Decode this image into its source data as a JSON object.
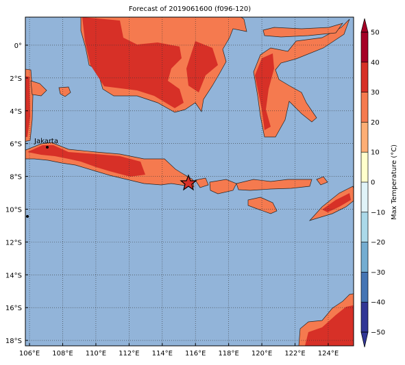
{
  "map": {
    "title": "Forecast of 2019061600 (f096-120)",
    "xlim": [
      105.75,
      125.53
    ],
    "ylim": [
      -18.33,
      1.71
    ],
    "xticks": [
      {
        "value": 106,
        "label": "106°E"
      },
      {
        "value": 108,
        "label": "108°E"
      },
      {
        "value": 110,
        "label": "110°E"
      },
      {
        "value": 112,
        "label": "112°E"
      },
      {
        "value": 114,
        "label": "114°E"
      },
      {
        "value": 116,
        "label": "116°E"
      },
      {
        "value": 118,
        "label": "118°E"
      },
      {
        "value": 120,
        "label": "120°E"
      },
      {
        "value": 122,
        "label": "122°E"
      },
      {
        "value": 124,
        "label": "124°E"
      }
    ],
    "yticks": [
      {
        "value": 0,
        "label": "0°"
      },
      {
        "value": -2,
        "label": "2°S"
      },
      {
        "value": -4,
        "label": "4°S"
      },
      {
        "value": -6,
        "label": "6°S"
      },
      {
        "value": -8,
        "label": "8°S"
      },
      {
        "value": -10,
        "label": "10°S"
      },
      {
        "value": -12,
        "label": "12°S"
      },
      {
        "value": -14,
        "label": "14°S"
      },
      {
        "value": -16,
        "label": "16°S"
      },
      {
        "value": -18,
        "label": "18°S"
      }
    ],
    "grid": true,
    "city_label": "Jakarta",
    "colorbar": {
      "label": "Max Temperature (°C)",
      "lim": [
        -50,
        50
      ],
      "ticks": [
        {
          "value": 50,
          "label": "50"
        },
        {
          "value": 40,
          "label": "40"
        },
        {
          "value": 30,
          "label": "30"
        },
        {
          "value": 20,
          "label": "20"
        },
        {
          "value": 10,
          "label": "10"
        },
        {
          "value": 0,
          "label": "0"
        },
        {
          "value": -10,
          "label": "−10"
        },
        {
          "value": -20,
          "label": "−20"
        },
        {
          "value": -30,
          "label": "−30"
        },
        {
          "value": -40,
          "label": "−40"
        },
        {
          "value": -50,
          "label": "−50"
        }
      ],
      "colors": [
        "#313695",
        "#4575b4",
        "#74add1",
        "#abd9e9",
        "#e0f3f8",
        "#ffffcc",
        "#fdae75",
        "#f57a4f",
        "#d73027",
        "#a50026"
      ]
    }
  }
}
